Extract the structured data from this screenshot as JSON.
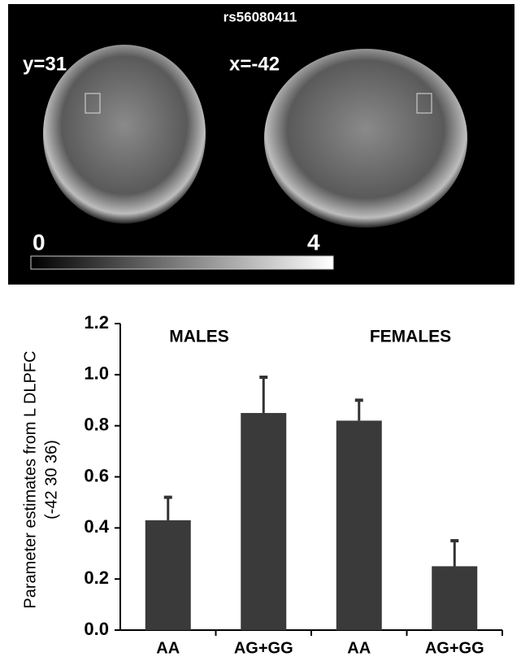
{
  "image_panel": {
    "title": "rs56080411",
    "views": [
      "y=31",
      "x=-42"
    ],
    "colorbar_ticks": [
      0,
      4
    ]
  },
  "chart_data": {
    "type": "bar",
    "y_label": [
      "Parameter estimates from L DLPFC",
      "(-42 30 36)"
    ],
    "annotations": [
      "MALES",
      "FEMALES"
    ],
    "categories": [
      "AA",
      "AG+GG",
      "AA",
      "AG+GG"
    ],
    "values": [
      0.43,
      0.85,
      0.82,
      0.25
    ],
    "errors": [
      0.09,
      0.14,
      0.08,
      0.1
    ],
    "color": "#3a3a3a",
    "ylim": [
      0,
      1.2
    ],
    "yticks": [
      {
        "value": 0,
        "label": "0.0"
      },
      0.2,
      0.4,
      0.6,
      0.8,
      {
        "value": 1,
        "label": "1.0"
      },
      1.2
    ]
  }
}
